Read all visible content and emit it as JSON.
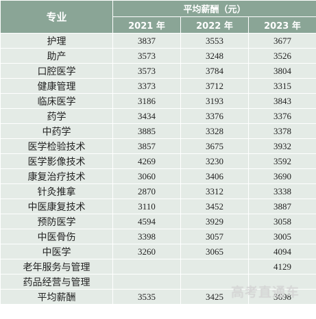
{
  "table": {
    "header": {
      "major": "专业",
      "group": "平均薪酬（元）",
      "years": [
        "2021 年",
        "2022 年",
        "2023 年"
      ]
    },
    "rows": [
      {
        "name": "护理",
        "values": [
          "3837",
          "3553",
          "3677"
        ]
      },
      {
        "name": "助产",
        "values": [
          "3573",
          "3248",
          "3526"
        ]
      },
      {
        "name": "口腔医学",
        "values": [
          "3573",
          "3784",
          "3804"
        ]
      },
      {
        "name": "健康管理",
        "values": [
          "3373",
          "3712",
          "3315"
        ]
      },
      {
        "name": "临床医学",
        "values": [
          "3186",
          "3193",
          "3843"
        ]
      },
      {
        "name": "药学",
        "values": [
          "3434",
          "3376",
          "3376"
        ]
      },
      {
        "name": "中药学",
        "values": [
          "3885",
          "3328",
          "3378"
        ]
      },
      {
        "name": "医学检验技术",
        "values": [
          "3857",
          "3675",
          "3932"
        ]
      },
      {
        "name": "医学影像技术",
        "values": [
          "4269",
          "3230",
          "3592"
        ]
      },
      {
        "name": "康复治疗技术",
        "values": [
          "3060",
          "3406",
          "3690"
        ]
      },
      {
        "name": "针灸推拿",
        "values": [
          "2870",
          "3312",
          "3338"
        ]
      },
      {
        "name": "中医康复技术",
        "values": [
          "3110",
          "3452",
          "3887"
        ]
      },
      {
        "name": "预防医学",
        "values": [
          "4594",
          "3929",
          "3058"
        ]
      },
      {
        "name": "中医骨伤",
        "values": [
          "3398",
          "3057",
          "3005"
        ]
      },
      {
        "name": "中医学",
        "values": [
          "3260",
          "3065",
          "4094"
        ]
      },
      {
        "name": "老年服务与管理",
        "values": [
          "",
          "",
          "4129"
        ]
      },
      {
        "name": "药品经营与管理",
        "values": [
          "",
          "",
          ""
        ]
      },
      {
        "name": "平均薪酬",
        "values": [
          "3535",
          "3425",
          "3698"
        ]
      }
    ]
  },
  "watermark": "高考直通车",
  "colors": {
    "header_bg": "#8aa596",
    "row_bg": "#e4ebe6",
    "cell_border": "#ffffff"
  }
}
